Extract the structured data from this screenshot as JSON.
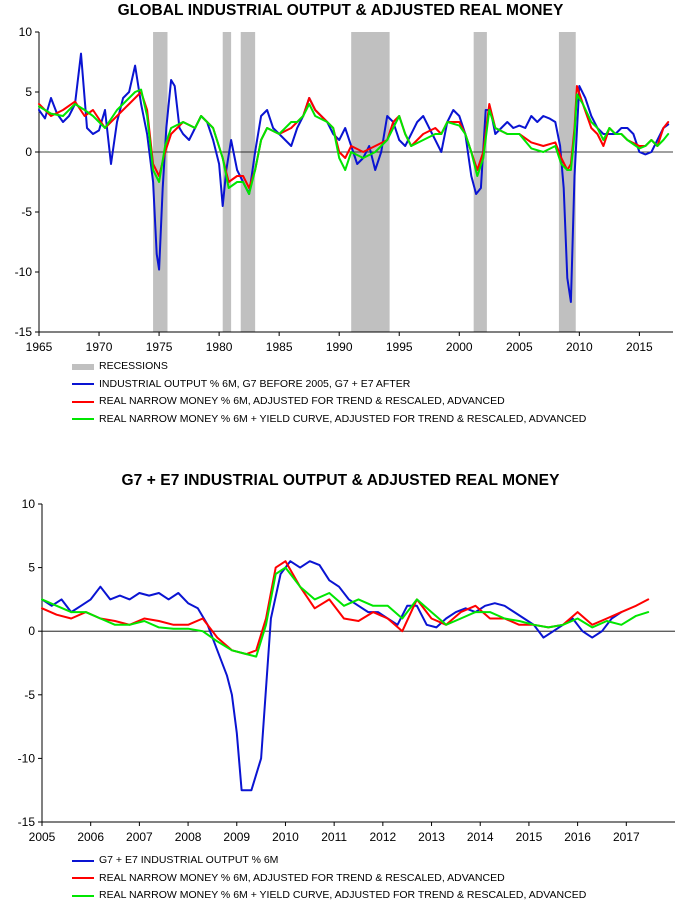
{
  "colors": {
    "industrial": "#0a14d2",
    "money": "#ff0000",
    "money_yc": "#00e600",
    "recession": "#c0c0c0"
  },
  "chart_data": [
    {
      "type": "line",
      "title": "GLOBAL INDUSTRIAL OUTPUT & ADJUSTED REAL MONEY",
      "xlim": [
        1965,
        2017.8
      ],
      "ylim": [
        -15,
        10
      ],
      "x_ticks": [
        "1965",
        "1970",
        "1975",
        "1980",
        "1985",
        "1990",
        "1995",
        "2000",
        "2005",
        "2010",
        "2015"
      ],
      "y_ticks": [
        "10",
        "5",
        "0",
        "-5",
        "-10",
        "-15"
      ],
      "recessions": [
        [
          1974.5,
          1975.7
        ],
        [
          1980.3,
          1981.0
        ],
        [
          1981.8,
          1983.0
        ],
        [
          1991.0,
          1994.2
        ],
        [
          2001.2,
          2002.3
        ],
        [
          2008.3,
          2009.7
        ]
      ],
      "legend": {
        "recessions": "RECESSIONS",
        "industrial": "INDUSTRIAL OUTPUT % 6M, G7 BEFORE 2005, G7 + E7 AFTER",
        "money": "REAL NARROW MONEY % 6M, ADJUSTED FOR TREND & RESCALED, ADVANCED",
        "money_yc": "REAL NARROW MONEY % 6M + YIELD CURVE, ADJUSTED FOR TREND & RESCALED, ADVANCED"
      },
      "series": [
        {
          "name": "INDUSTRIAL OUTPUT % 6M, G7 BEFORE 2005, G7 + E7 AFTER",
          "x": [
            1965.0,
            1965.5,
            1966.0,
            1966.5,
            1967.0,
            1967.5,
            1968.0,
            1968.5,
            1969.0,
            1969.5,
            1970.0,
            1970.5,
            1971.0,
            1971.5,
            1972.0,
            1972.5,
            1973.0,
            1973.5,
            1974.0,
            1974.5,
            1974.8,
            1975.0,
            1975.3,
            1975.6,
            1976.0,
            1976.3,
            1976.7,
            1977.0,
            1977.5,
            1978.0,
            1978.5,
            1979.0,
            1979.5,
            1980.0,
            1980.3,
            1980.6,
            1981.0,
            1981.5,
            1982.0,
            1982.5,
            1983.0,
            1983.5,
            1984.0,
            1984.5,
            1985.0,
            1985.5,
            1986.0,
            1986.5,
            1987.0,
            1987.5,
            1988.0,
            1988.5,
            1989.0,
            1989.5,
            1990.0,
            1990.5,
            1991.0,
            1991.5,
            1992.0,
            1992.5,
            1993.0,
            1993.5,
            1994.0,
            1994.5,
            1995.0,
            1995.5,
            1996.0,
            1996.5,
            1997.0,
            1997.5,
            1998.0,
            1998.5,
            1999.0,
            1999.5,
            2000.0,
            2000.5,
            2001.0,
            2001.4,
            2001.8,
            2002.2,
            2002.6,
            2003.0,
            2003.5,
            2004.0,
            2004.5,
            2005.0,
            2005.5,
            2006.0,
            2006.5,
            2007.0,
            2007.5,
            2008.0,
            2008.4,
            2008.7,
            2009.0,
            2009.3,
            2009.6,
            2010.0,
            2010.5,
            2011.0,
            2011.5,
            2012.0,
            2012.5,
            2013.0,
            2013.5,
            2014.0,
            2014.5,
            2015.0,
            2015.5,
            2016.0,
            2016.5,
            2017.0,
            2017.4
          ],
          "values": [
            3.5,
            2.8,
            4.5,
            3.2,
            2.5,
            3.0,
            4.0,
            8.2,
            2.0,
            1.5,
            1.8,
            3.5,
            -1.0,
            2.5,
            4.5,
            5.0,
            7.2,
            4.0,
            1.5,
            -2.5,
            -8.5,
            -9.8,
            -3.0,
            2.0,
            6.0,
            5.5,
            2.0,
            1.5,
            1.0,
            2.0,
            3.0,
            2.5,
            1.0,
            -1.0,
            -4.5,
            -1.5,
            1.0,
            -1.5,
            -2.5,
            -3.5,
            0.0,
            3.0,
            3.5,
            2.0,
            1.5,
            1.0,
            0.5,
            2.0,
            3.0,
            4.5,
            3.5,
            3.0,
            2.5,
            1.5,
            1.0,
            2.0,
            0.5,
            -1.0,
            -0.5,
            0.5,
            -1.5,
            0.0,
            3.0,
            2.5,
            1.0,
            0.5,
            1.5,
            2.5,
            3.0,
            2.0,
            1.0,
            0.0,
            2.5,
            3.5,
            3.0,
            1.5,
            -2.0,
            -3.5,
            -3.0,
            3.5,
            3.5,
            1.5,
            2.0,
            2.5,
            2.0,
            2.2,
            2.0,
            3.0,
            2.5,
            3.0,
            2.8,
            2.5,
            0.5,
            -3.0,
            -10.5,
            -12.5,
            -2.0,
            5.5,
            4.5,
            3.0,
            2.0,
            1.5,
            1.5,
            1.5,
            2.0,
            2.0,
            1.5,
            0.0,
            -0.2,
            0.0,
            1.0,
            2.0,
            2.3
          ]
        },
        {
          "name": "REAL NARROW MONEY % 6M, ADJUSTED FOR TREND & RESCALED, ADVANCED",
          "x": [
            1965.0,
            1966.0,
            1967.0,
            1968.0,
            1968.8,
            1969.5,
            1970.5,
            1971.5,
            1972.5,
            1973.0,
            1973.5,
            1974.0,
            1974.5,
            1975.0,
            1975.5,
            1976.0,
            1977.0,
            1978.0,
            1978.5,
            1979.5,
            1980.3,
            1980.8,
            1981.5,
            1982.0,
            1982.5,
            1983.0,
            1983.5,
            1984.0,
            1985.0,
            1986.0,
            1986.5,
            1987.0,
            1987.5,
            1988.0,
            1989.0,
            1989.5,
            1990.0,
            1990.5,
            1991.0,
            1992.0,
            1993.0,
            1994.0,
            1994.5,
            1995.0,
            1995.5,
            1996.0,
            1997.0,
            1998.0,
            1998.5,
            1999.0,
            2000.0,
            2000.5,
            2001.0,
            2001.5,
            2002.0,
            2002.5,
            2003.0,
            2004.0,
            2005.0,
            2006.0,
            2007.0,
            2008.0,
            2008.5,
            2009.0,
            2009.3,
            2009.6,
            2009.8,
            2010.3,
            2011.0,
            2011.5,
            2012.0,
            2012.5,
            2013.0,
            2013.5,
            2014.0,
            2015.0,
            2015.5,
            2016.0,
            2016.5,
            2017.0,
            2017.4
          ],
          "values": [
            4.0,
            3.0,
            3.5,
            4.2,
            3.0,
            3.5,
            2.0,
            3.0,
            4.0,
            4.5,
            5.0,
            3.5,
            -1.0,
            -2.0,
            0.0,
            1.5,
            2.5,
            2.0,
            3.0,
            2.0,
            -0.5,
            -2.5,
            -2.0,
            -2.0,
            -3.0,
            -1.5,
            1.0,
            2.0,
            1.5,
            2.0,
            2.5,
            3.0,
            4.5,
            3.5,
            2.5,
            2.0,
            0.0,
            -0.5,
            0.5,
            0.0,
            0.5,
            1.0,
            2.5,
            3.0,
            1.5,
            0.5,
            1.5,
            2.0,
            1.5,
            2.5,
            2.5,
            1.5,
            0.0,
            -1.5,
            0.0,
            4.0,
            2.0,
            1.5,
            1.5,
            0.8,
            0.5,
            0.8,
            -0.5,
            -1.5,
            -1.0,
            2.0,
            5.5,
            4.0,
            2.0,
            1.5,
            0.5,
            2.0,
            1.5,
            1.5,
            1.0,
            0.5,
            0.5,
            1.0,
            0.5,
            2.0,
            2.5
          ]
        },
        {
          "name": "REAL NARROW MONEY % 6M + YIELD CURVE, ADJUSTED FOR TREND & RESCALED, ADVANCED",
          "x": [
            1965.0,
            1966.0,
            1967.0,
            1968.0,
            1968.8,
            1969.5,
            1970.5,
            1971.5,
            1972.5,
            1973.0,
            1973.5,
            1974.0,
            1974.5,
            1975.0,
            1975.5,
            1976.0,
            1977.0,
            1978.0,
            1978.5,
            1979.5,
            1980.3,
            1980.8,
            1981.5,
            1982.0,
            1982.5,
            1983.0,
            1983.5,
            1984.0,
            1985.0,
            1986.0,
            1986.5,
            1987.0,
            1987.5,
            1988.0,
            1989.0,
            1989.5,
            1990.0,
            1990.5,
            1991.0,
            1992.0,
            1993.0,
            1994.0,
            1994.5,
            1995.0,
            1995.5,
            1996.0,
            1997.0,
            1998.0,
            1998.5,
            1999.0,
            2000.0,
            2000.5,
            2001.0,
            2001.5,
            2002.0,
            2002.5,
            2003.0,
            2004.0,
            2005.0,
            2006.0,
            2007.0,
            2008.0,
            2008.5,
            2009.0,
            2009.3,
            2009.6,
            2009.8,
            2010.3,
            2011.0,
            2011.5,
            2012.0,
            2012.5,
            2013.0,
            2013.5,
            2014.0,
            2015.0,
            2015.5,
            2016.0,
            2016.5,
            2017.0,
            2017.4
          ],
          "values": [
            3.8,
            3.2,
            3.0,
            4.0,
            3.5,
            3.0,
            2.0,
            3.5,
            4.5,
            5.0,
            5.2,
            3.0,
            -1.5,
            -2.5,
            0.5,
            2.0,
            2.5,
            2.0,
            3.0,
            2.0,
            -0.5,
            -3.0,
            -2.5,
            -2.5,
            -3.5,
            -1.5,
            1.0,
            2.0,
            1.5,
            2.5,
            2.5,
            3.0,
            4.0,
            3.0,
            2.5,
            2.0,
            -0.5,
            -1.5,
            0.0,
            -0.5,
            0.0,
            1.0,
            2.0,
            3.0,
            1.5,
            0.5,
            1.0,
            1.5,
            1.5,
            2.5,
            2.2,
            1.5,
            0.0,
            -2.0,
            -0.5,
            3.5,
            2.0,
            1.5,
            1.5,
            0.3,
            0.0,
            0.5,
            -1.0,
            -1.5,
            -1.5,
            1.5,
            4.8,
            4.0,
            2.5,
            2.0,
            1.0,
            2.0,
            1.5,
            1.5,
            1.0,
            0.3,
            0.5,
            1.0,
            0.5,
            1.0,
            1.5
          ]
        }
      ]
    },
    {
      "type": "line",
      "title": "G7 + E7 INDUSTRIAL OUTPUT & ADJUSTED REAL MONEY",
      "xlim": [
        2005,
        2018.0
      ],
      "ylim": [
        -15,
        10
      ],
      "x_ticks": [
        "2005",
        "2006",
        "2007",
        "2008",
        "2009",
        "2010",
        "2011",
        "2012",
        "2013",
        "2014",
        "2015",
        "2016",
        "2017"
      ],
      "y_ticks": [
        "10",
        "5",
        "0",
        "-5",
        "-10",
        "-15"
      ],
      "legend": {
        "industrial": "G7 + E7 INDUSTRIAL OUTPUT % 6M",
        "money": "REAL NARROW MONEY % 6M, ADJUSTED FOR TREND & RESCALED, ADVANCED",
        "money_yc": "REAL NARROW MONEY % 6M + YIELD CURVE, ADJUSTED FOR TREND & RESCALED, ADVANCED"
      },
      "series": [
        {
          "name": "G7 + E7 INDUSTRIAL OUTPUT % 6M",
          "x": [
            2005.0,
            2005.2,
            2005.4,
            2005.6,
            2005.8,
            2006.0,
            2006.2,
            2006.4,
            2006.6,
            2006.8,
            2007.0,
            2007.2,
            2007.4,
            2007.6,
            2007.8,
            2008.0,
            2008.2,
            2008.4,
            2008.6,
            2008.8,
            2008.9,
            2009.0,
            2009.1,
            2009.3,
            2009.5,
            2009.7,
            2009.9,
            2010.1,
            2010.3,
            2010.5,
            2010.7,
            2010.9,
            2011.1,
            2011.3,
            2011.5,
            2011.7,
            2011.9,
            2012.1,
            2012.3,
            2012.5,
            2012.7,
            2012.9,
            2013.1,
            2013.3,
            2013.5,
            2013.7,
            2013.9,
            2014.1,
            2014.3,
            2014.5,
            2014.7,
            2014.9,
            2015.1,
            2015.3,
            2015.5,
            2015.7,
            2015.9,
            2016.1,
            2016.3,
            2016.5,
            2016.7,
            2016.9
          ],
          "values": [
            2.5,
            2.0,
            2.5,
            1.5,
            2.0,
            2.5,
            3.5,
            2.5,
            2.8,
            2.5,
            3.0,
            2.8,
            3.0,
            2.5,
            3.0,
            2.2,
            1.8,
            0.5,
            -1.5,
            -3.5,
            -5.0,
            -8.0,
            -12.5,
            -12.5,
            -10.0,
            1.0,
            4.5,
            5.5,
            5.0,
            5.5,
            5.2,
            4.0,
            3.5,
            2.5,
            2.0,
            1.5,
            1.5,
            1.0,
            0.5,
            2.0,
            2.0,
            0.5,
            0.3,
            1.0,
            1.5,
            1.8,
            1.5,
            2.0,
            2.2,
            2.0,
            1.5,
            1.0,
            0.5,
            -0.5,
            0.0,
            0.5,
            1.0,
            0.0,
            -0.5,
            0.0,
            1.0,
            1.5
          ]
        },
        {
          "name": "REAL NARROW MONEY % 6M, ADJUSTED FOR TREND & RESCALED, ADVANCED",
          "x": [
            2005.0,
            2005.3,
            2005.6,
            2005.9,
            2006.2,
            2006.5,
            2006.8,
            2007.1,
            2007.4,
            2007.7,
            2008.0,
            2008.3,
            2008.6,
            2008.9,
            2009.2,
            2009.4,
            2009.6,
            2009.8,
            2010.0,
            2010.3,
            2010.6,
            2010.9,
            2011.2,
            2011.5,
            2011.8,
            2012.1,
            2012.4,
            2012.7,
            2013.0,
            2013.3,
            2013.6,
            2013.9,
            2014.2,
            2014.5,
            2014.8,
            2015.1,
            2015.4,
            2015.7,
            2016.0,
            2016.3,
            2016.6,
            2016.9,
            2017.2,
            2017.45
          ],
          "values": [
            1.8,
            1.3,
            1.0,
            1.5,
            1.0,
            0.8,
            0.5,
            1.0,
            0.8,
            0.5,
            0.5,
            1.0,
            -0.5,
            -1.5,
            -1.8,
            -1.5,
            1.0,
            5.0,
            5.5,
            3.5,
            1.8,
            2.5,
            1.0,
            0.8,
            1.5,
            1.0,
            0.0,
            2.5,
            1.0,
            0.5,
            1.5,
            2.0,
            1.0,
            1.0,
            0.5,
            0.5,
            0.3,
            0.5,
            1.5,
            0.5,
            1.0,
            1.5,
            2.0,
            2.5
          ]
        },
        {
          "name": "REAL NARROW MONEY % 6M + YIELD CURVE, ADJUSTED FOR TREND & RESCALED, ADVANCED",
          "x": [
            2005.0,
            2005.3,
            2005.6,
            2005.9,
            2006.2,
            2006.5,
            2006.8,
            2007.1,
            2007.4,
            2007.7,
            2008.0,
            2008.3,
            2008.6,
            2008.9,
            2009.2,
            2009.4,
            2009.6,
            2009.8,
            2010.0,
            2010.3,
            2010.6,
            2010.9,
            2011.2,
            2011.5,
            2011.8,
            2012.1,
            2012.4,
            2012.7,
            2013.0,
            2013.3,
            2013.6,
            2013.9,
            2014.2,
            2014.5,
            2014.8,
            2015.1,
            2015.4,
            2015.7,
            2016.0,
            2016.3,
            2016.6,
            2016.9,
            2017.2,
            2017.45
          ],
          "values": [
            2.5,
            2.0,
            1.5,
            1.5,
            1.0,
            0.5,
            0.5,
            0.8,
            0.3,
            0.2,
            0.2,
            0.0,
            -0.8,
            -1.5,
            -1.8,
            -2.0,
            0.5,
            4.5,
            5.0,
            3.5,
            2.5,
            3.0,
            2.0,
            2.5,
            2.0,
            2.0,
            1.0,
            2.5,
            1.5,
            0.5,
            1.0,
            1.5,
            1.5,
            1.0,
            0.8,
            0.5,
            0.3,
            0.5,
            1.0,
            0.3,
            0.8,
            0.5,
            1.2,
            1.5
          ]
        }
      ]
    }
  ]
}
